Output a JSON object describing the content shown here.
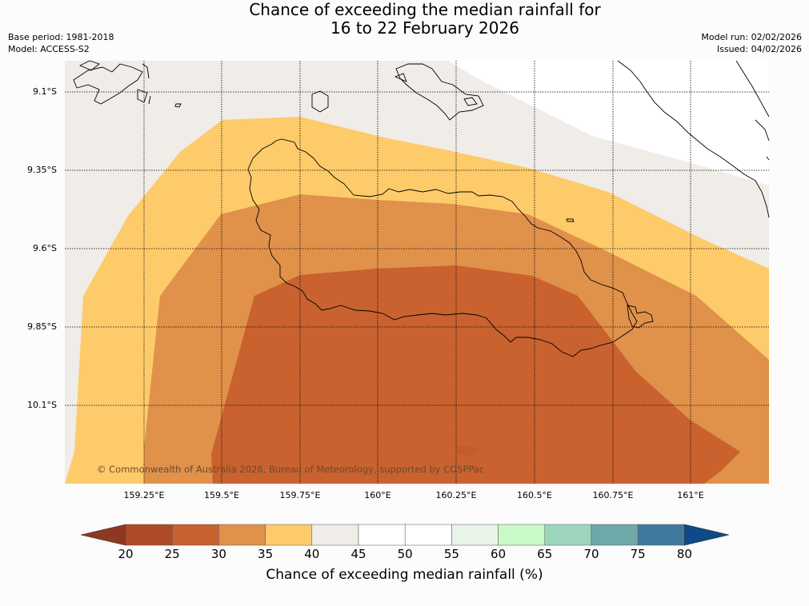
{
  "header": {
    "title_line1": "Chance of exceeding the median rainfall for",
    "title_line2": "16 to 22 February 2026",
    "base_period": "Base period: 1981-2018",
    "model": "Model: ACCESS-S2",
    "model_run": "Model run: 02/02/2026",
    "issued": "Issued: 04/02/2026"
  },
  "map": {
    "lat_labels": [
      "9.1°S",
      "9.35°S",
      "9.6°S",
      "9.85°S",
      "10.1°S"
    ],
    "lon_labels": [
      "159.25°E",
      "159.5°E",
      "159.75°E",
      "160°E",
      "160.25°E",
      "160.5°E",
      "160.75°E",
      "161°E"
    ],
    "copyright": "© Commonwealth of Australia 2026, Bureau of Meteorology, supported by COSPPac"
  },
  "legend": {
    "title": "Chance of exceeding median rainfall (%)",
    "ticks": [
      "20",
      "25",
      "30",
      "35",
      "40",
      "45",
      "50",
      "55",
      "60",
      "65",
      "70",
      "75",
      "80"
    ],
    "colors": [
      "#b04a26",
      "#c9622f",
      "#e0914a",
      "#fdcb6a",
      "#f0ece8",
      "#ffffff",
      "#ffffff",
      "#e8f4e8",
      "#c8fbc8",
      "#9dd4bc",
      "#6fa8a8",
      "#41799c"
    ],
    "under_color": "#8f3821",
    "over_color": "#0d4a87"
  }
}
